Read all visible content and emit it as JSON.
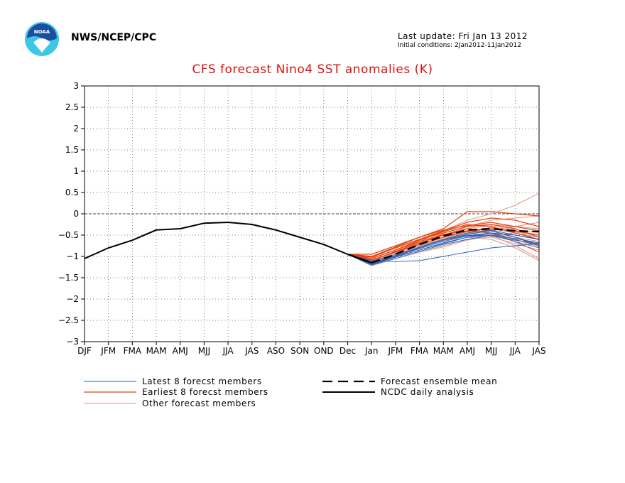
{
  "header": {
    "agency": "NWS/NCEP/CPC",
    "last_update": "Last update: Fri Jan 13 2012",
    "initial_conditions": "Initial conditions: 2Jan2012-11Jan2012"
  },
  "colors": {
    "title": "#e01010",
    "latest": "#1f5fbf",
    "earliest": "#e8400c",
    "other": "#d89a88",
    "mean": "#000000",
    "analysis": "#000000",
    "logo_blue": "#1a4fa0",
    "logo_cyan": "#3ec6e8"
  },
  "logo_icon": "noaa-logo",
  "chart_data": {
    "type": "line",
    "title": "CFS forecast Nino4 SST anomalies (K)",
    "categories": [
      "DJF",
      "JFM",
      "FMA",
      "MAM",
      "AMJ",
      "MJJ",
      "JJA",
      "JAS",
      "ASO",
      "SON",
      "OND",
      "Dec",
      "Jan",
      "JFM",
      "FMA",
      "MAM",
      "AMJ",
      "MJJ",
      "JJA",
      "JAS"
    ],
    "ylim": [
      -3,
      3
    ],
    "yticks": [
      -3,
      -2.5,
      -2,
      -1.5,
      -1,
      -0.5,
      0,
      0.5,
      1,
      1.5,
      2,
      2.5,
      3
    ],
    "ytick_labels": [
      "−3",
      "−2.5",
      "−2",
      "−1.5",
      "−1",
      "−0.5",
      "0",
      "0.5",
      "1",
      "1.5",
      "2",
      "2.5",
      "3"
    ],
    "grid": true,
    "zero_line": true,
    "analysis": {
      "name": "NCDC daily analysis",
      "x": [
        0,
        1,
        2,
        3,
        4,
        5,
        6,
        7,
        8,
        9,
        10,
        11,
        12
      ],
      "values": [
        -1.05,
        -0.8,
        -0.62,
        -0.38,
        -0.35,
        -0.22,
        -0.2,
        -0.25,
        -0.38,
        -0.55,
        -0.72,
        -0.95,
        -1.15
      ]
    },
    "mean": {
      "name": "Forecast ensemble mean",
      "x": [
        11,
        12,
        13,
        14,
        15,
        16,
        17,
        18,
        19
      ],
      "values": [
        -0.95,
        -1.15,
        -0.95,
        -0.72,
        -0.52,
        -0.38,
        -0.35,
        -0.4,
        -0.42
      ]
    },
    "latest_members": {
      "name": "Latest 8 forecst members",
      "x": [
        11,
        12,
        13,
        14,
        15,
        16,
        17,
        18,
        19
      ],
      "members": [
        [
          -0.95,
          -1.1,
          -1.12,
          -1.1,
          -1.0,
          -0.9,
          -0.8,
          -0.75,
          -0.7
        ],
        [
          -0.95,
          -1.15,
          -1.0,
          -0.85,
          -0.7,
          -0.55,
          -0.45,
          -0.5,
          -0.6
        ],
        [
          -0.95,
          -1.18,
          -1.02,
          -0.85,
          -0.68,
          -0.55,
          -0.5,
          -0.65,
          -0.8
        ],
        [
          -0.95,
          -1.2,
          -1.0,
          -0.78,
          -0.6,
          -0.45,
          -0.38,
          -0.5,
          -0.6
        ],
        [
          -0.95,
          -1.12,
          -0.95,
          -0.8,
          -0.62,
          -0.48,
          -0.4,
          -0.55,
          -0.72
        ],
        [
          -0.95,
          -1.15,
          -0.98,
          -0.82,
          -0.65,
          -0.52,
          -0.45,
          -0.6,
          -0.75
        ],
        [
          -0.95,
          -1.2,
          -1.05,
          -0.88,
          -0.72,
          -0.6,
          -0.5,
          -0.58,
          -0.68
        ],
        [
          -0.95,
          -1.18,
          -1.0,
          -0.8,
          -0.62,
          -0.5,
          -0.52,
          -0.62,
          -0.7
        ]
      ]
    },
    "earliest_members": {
      "name": "Earliest 8 forecst members",
      "x": [
        11,
        12,
        13,
        14,
        15,
        16,
        17,
        18,
        19
      ],
      "members": [
        [
          -0.95,
          -0.95,
          -0.75,
          -0.55,
          -0.35,
          0.05,
          0.05,
          0.0,
          -0.05
        ],
        [
          -0.95,
          -1.0,
          -0.8,
          -0.6,
          -0.4,
          -0.2,
          -0.1,
          -0.15,
          -0.3
        ],
        [
          -0.95,
          -1.05,
          -0.85,
          -0.62,
          -0.42,
          -0.25,
          -0.3,
          -0.45,
          -0.6
        ],
        [
          -0.95,
          -1.0,
          -0.78,
          -0.55,
          -0.38,
          -0.28,
          -0.2,
          -0.3,
          -0.4
        ],
        [
          -0.95,
          -1.1,
          -0.88,
          -0.68,
          -0.5,
          -0.35,
          -0.4,
          -0.55,
          -0.75
        ],
        [
          -0.95,
          -1.05,
          -0.85,
          -0.65,
          -0.48,
          -0.4,
          -0.45,
          -0.65,
          -0.9
        ],
        [
          -0.95,
          -1.02,
          -0.8,
          -0.6,
          -0.45,
          -0.3,
          -0.25,
          -0.35,
          -0.55
        ],
        [
          -0.95,
          -1.08,
          -0.9,
          -0.72,
          -0.55,
          -0.42,
          -0.35,
          -0.4,
          -0.5
        ]
      ]
    },
    "other_members": {
      "name": "Other forecast members",
      "x": [
        11,
        12,
        13,
        14,
        15,
        16,
        17,
        18,
        19
      ],
      "members": [
        [
          -0.95,
          -1.15,
          -0.9,
          -0.65,
          -0.4,
          -0.15,
          0.0,
          0.2,
          0.48
        ],
        [
          -0.95,
          -1.2,
          -1.0,
          -0.8,
          -0.6,
          -0.45,
          -0.4,
          -0.3,
          -0.2
        ],
        [
          -0.95,
          -1.22,
          -1.05,
          -0.9,
          -0.75,
          -0.6,
          -0.55,
          -0.7,
          -0.85
        ],
        [
          -0.95,
          -1.18,
          -0.98,
          -0.78,
          -0.6,
          -0.45,
          -0.5,
          -0.75,
          -1.05
        ],
        [
          -0.95,
          -1.1,
          -0.92,
          -0.72,
          -0.55,
          -0.4,
          -0.32,
          -0.42,
          -0.5
        ],
        [
          -0.95,
          -1.2,
          -0.95,
          -0.75,
          -0.55,
          -0.35,
          -0.25,
          -0.3,
          -0.35
        ],
        [
          -0.95,
          -1.15,
          -0.95,
          -0.75,
          -0.6,
          -0.5,
          -0.45,
          -0.55,
          -0.65
        ],
        [
          -0.95,
          -1.12,
          -0.9,
          -0.7,
          -0.5,
          -0.3,
          -0.15,
          -0.1,
          -0.05
        ],
        [
          -0.95,
          -1.2,
          -1.02,
          -0.85,
          -0.7,
          -0.55,
          -0.6,
          -0.8,
          -1.1
        ],
        [
          -0.95,
          -1.18,
          -0.96,
          -0.76,
          -0.58,
          -0.42,
          -0.35,
          -0.45,
          -0.55
        ],
        [
          -0.95,
          -1.22,
          -1.0,
          -0.8,
          -0.62,
          -0.46,
          -0.38,
          -0.3,
          -0.2
        ],
        [
          -0.95,
          -1.1,
          -0.9,
          -0.68,
          -0.5,
          -0.34,
          -0.28,
          -0.38,
          -0.62
        ],
        [
          -0.95,
          -1.16,
          -0.97,
          -0.79,
          -0.63,
          -0.52,
          -0.48,
          -0.6,
          -0.78
        ],
        [
          -0.95,
          -1.2,
          -1.05,
          -0.9,
          -0.78,
          -0.62,
          -0.5,
          -0.45,
          -0.4
        ]
      ]
    }
  }
}
